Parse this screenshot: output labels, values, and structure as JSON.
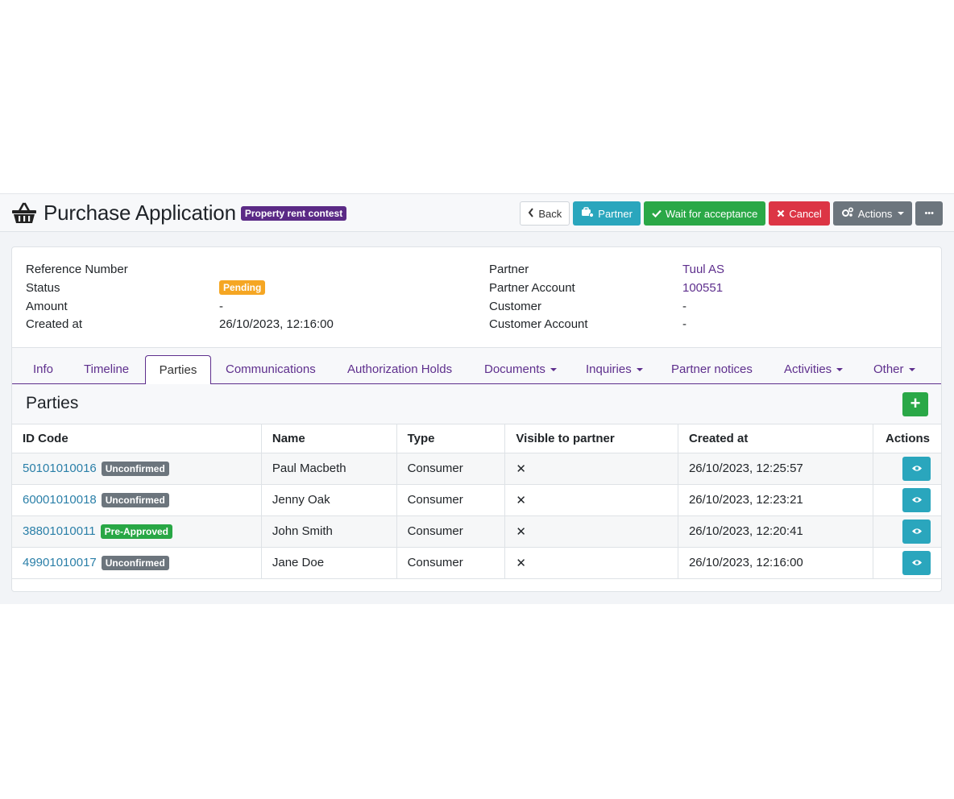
{
  "header": {
    "title": "Purchase Application",
    "badge": "Property rent contest",
    "buttons": {
      "back": "Back",
      "partner": "Partner",
      "wait": "Wait for acceptance",
      "cancel": "Cancel",
      "actions": "Actions",
      "more": "•••"
    }
  },
  "info": {
    "left": [
      {
        "label": "Reference Number",
        "value": ""
      },
      {
        "label": "Status",
        "value": "Pending"
      },
      {
        "label": "Amount",
        "value": "-"
      },
      {
        "label": "Created at",
        "value": "26/10/2023, 12:16:00"
      }
    ],
    "right": [
      {
        "label": "Partner",
        "value": "Tuul AS"
      },
      {
        "label": "Partner Account",
        "value": "100551"
      },
      {
        "label": "Customer",
        "value": "-"
      },
      {
        "label": "Customer Account",
        "value": "-"
      }
    ]
  },
  "tabs": [
    {
      "label": "Info"
    },
    {
      "label": "Timeline"
    },
    {
      "label": "Parties"
    },
    {
      "label": "Communications"
    },
    {
      "label": "Authorization Holds"
    },
    {
      "label": "Documents"
    },
    {
      "label": "Inquiries"
    },
    {
      "label": "Partner notices"
    },
    {
      "label": "Activities"
    },
    {
      "label": "Other"
    }
  ],
  "section": {
    "title": "Parties",
    "add_label": "+"
  },
  "table": {
    "columns": [
      "ID Code",
      "Name",
      "Type",
      "Visible to partner",
      "Created at",
      "Actions"
    ],
    "rows": [
      {
        "id": "50101010016",
        "status": "Unconfirmed",
        "name": "Paul Macbeth",
        "type": "Consumer",
        "visible": "✕",
        "created": "26/10/2023, 12:25:57"
      },
      {
        "id": "60001010018",
        "status": "Unconfirmed",
        "name": "Jenny Oak",
        "type": "Consumer",
        "visible": "✕",
        "created": "26/10/2023, 12:23:21"
      },
      {
        "id": "38801010011",
        "status": "Pre-Approved",
        "name": "John Smith",
        "type": "Consumer",
        "visible": "✕",
        "created": "26/10/2023, 12:20:41"
      },
      {
        "id": "49901010017",
        "status": "Unconfirmed",
        "name": "Jane Doe",
        "type": "Consumer",
        "visible": "✕",
        "created": "26/10/2023, 12:16:00"
      }
    ]
  }
}
